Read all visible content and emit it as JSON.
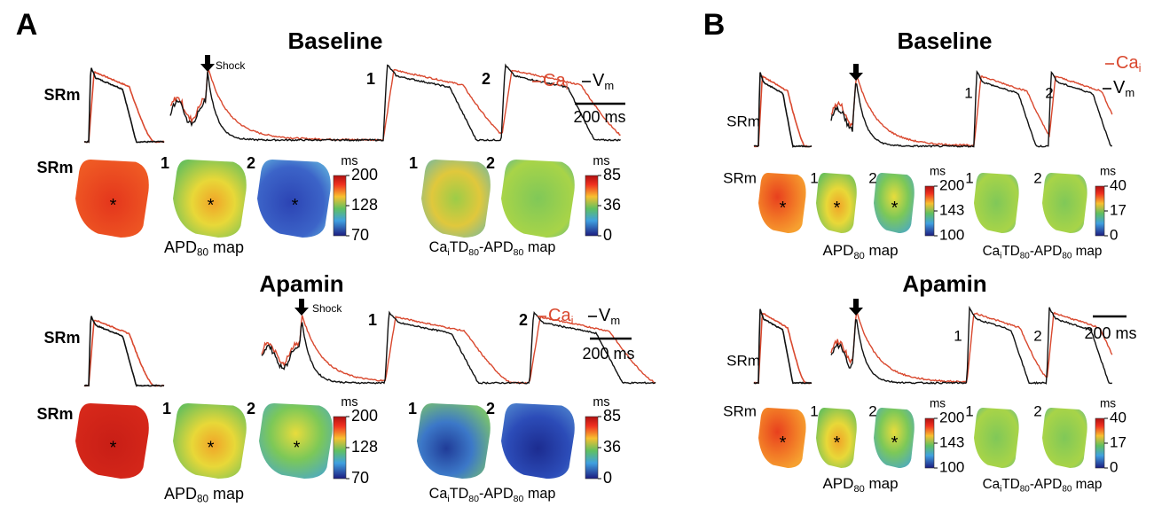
{
  "panels": [
    {
      "label": "A",
      "rows": [
        {
          "title": "Baseline",
          "trace_label": "SRm",
          "shock": "Shock",
          "beats": [
            "1",
            "2"
          ],
          "legend": {
            "ca": [
              "Ca",
              "i"
            ],
            "vm": [
              "V",
              "m"
            ]
          },
          "scale_bar": "200 ms",
          "map_label": "SRm",
          "apd_maps": [
            "1",
            "2"
          ],
          "apd_unit": "ms",
          "apd_ticks": [
            200,
            128,
            70
          ],
          "apd_caption": [
            "APD",
            "80",
            " map"
          ],
          "ca_maps": [
            "1",
            "2"
          ],
          "ca_unit": "ms",
          "ca_ticks": [
            85,
            36,
            0
          ],
          "ca_caption": [
            "Ca",
            "i",
            "TD",
            "80",
            "-APD",
            "80",
            " map"
          ]
        },
        {
          "title": "Apamin",
          "trace_label": "SRm",
          "shock": "Shock",
          "beats": [
            "1",
            "2"
          ],
          "legend": {
            "ca": [
              "Ca",
              "i"
            ],
            "vm": [
              "V",
              "m"
            ]
          },
          "scale_bar": "200 ms",
          "map_label": "SRm",
          "apd_maps": [
            "1",
            "2"
          ],
          "apd_unit": "ms",
          "apd_ticks": [
            200,
            128,
            70
          ],
          "apd_caption": [
            "APD",
            "80",
            " map"
          ],
          "ca_maps": [
            "1",
            "2"
          ],
          "ca_unit": "ms",
          "ca_ticks": [
            85,
            36,
            0
          ],
          "ca_caption": [
            "Ca",
            "i",
            "TD",
            "80",
            "-APD",
            "80",
            " map"
          ]
        }
      ]
    },
    {
      "label": "B",
      "rows": [
        {
          "title": "Baseline",
          "trace_label": "SRm",
          "beats": [
            "1",
            "2"
          ],
          "legend": {
            "ca": [
              "Ca",
              "i"
            ],
            "vm": [
              "V",
              "m"
            ]
          },
          "map_label": "SRm",
          "apd_maps": [
            "1",
            "2"
          ],
          "apd_unit": "ms",
          "apd_ticks": [
            200,
            143,
            100
          ],
          "apd_caption": [
            "APD",
            "80",
            " map"
          ],
          "ca_maps": [
            "1",
            "2"
          ],
          "ca_unit": "ms",
          "ca_ticks": [
            40,
            17,
            0
          ],
          "ca_caption": [
            "Ca",
            "i",
            "TD",
            "80",
            "-APD",
            "80",
            " map"
          ]
        },
        {
          "title": "Apamin",
          "trace_label": "SRm",
          "beats": [
            "1",
            "2"
          ],
          "scale_bar": "200 ms",
          "map_label": "SRm",
          "apd_maps": [
            "1",
            "2"
          ],
          "apd_unit": "ms",
          "apd_ticks": [
            200,
            143,
            100
          ],
          "apd_caption": [
            "APD",
            "80",
            " map"
          ],
          "ca_maps": [
            "1",
            "2"
          ],
          "ca_unit": "ms",
          "ca_ticks": [
            40,
            17,
            0
          ],
          "ca_caption": [
            "Ca",
            "i",
            "TD",
            "80",
            "-APD",
            "80",
            " map"
          ]
        }
      ]
    }
  ],
  "marker": "*"
}
